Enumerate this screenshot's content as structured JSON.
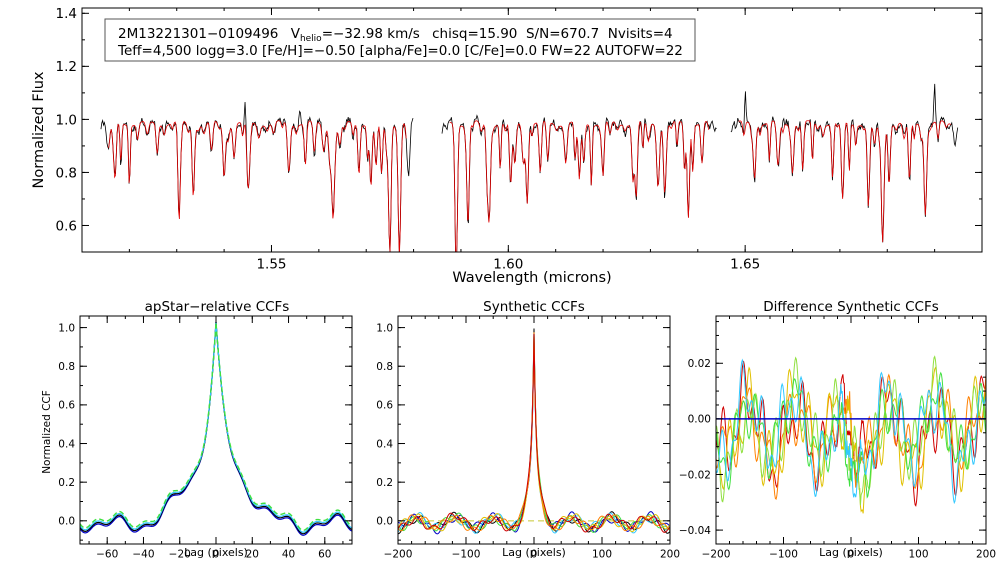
{
  "chart_data": [
    {
      "type": "line",
      "name": "spectrum",
      "title_lines": {
        "line1_id": "2M13221301−0109496",
        "line1_v_prefix": "V",
        "line1_v_sub": "helio",
        "line1_v_value": "=−32.98 km/s",
        "line1_rest": "chisq=15.90  S/N=670.7  Nvisits=4",
        "line2": "Teff=4,500 logg=3.0 [Fe/H]=−0.50 [alpha/Fe]=0.0 [C/Fe]=0.0 FW=22 AUTOFW=22"
      },
      "xlabel": "Wavelength (microns)",
      "ylabel": "Normalized Flux",
      "xlim": [
        1.51,
        1.7
      ],
      "ylim": [
        0.5,
        1.42
      ],
      "xticks": [
        1.55,
        1.6,
        1.65
      ],
      "xtick_labels": [
        "1.55",
        "1.60",
        "1.65"
      ],
      "yticks": [
        0.6,
        0.8,
        1.0,
        1.2,
        1.4
      ],
      "ytick_labels": [
        "0.6",
        "0.8",
        "1.0",
        "1.2",
        "1.4"
      ],
      "chips": [
        [
          1.514,
          1.58
        ],
        [
          1.586,
          1.644
        ],
        [
          1.647,
          1.695
        ]
      ],
      "series": [
        {
          "name": "observed",
          "color": "#000000"
        },
        {
          "name": "synthetic",
          "color": "#e00000"
        }
      ],
      "deep_absorption_lines": [
        {
          "x": 1.517,
          "depth": 0.8
        },
        {
          "x": 1.5305,
          "depth": 0.62
        },
        {
          "x": 1.5335,
          "depth": 0.73
        },
        {
          "x": 1.54,
          "depth": 0.8
        },
        {
          "x": 1.545,
          "depth": 0.79
        },
        {
          "x": 1.563,
          "depth": 0.69
        },
        {
          "x": 1.571,
          "depth": 0.76
        },
        {
          "x": 1.575,
          "depth": 0.53
        },
        {
          "x": 1.577,
          "depth": 0.51
        },
        {
          "x": 1.589,
          "depth": 0.51
        },
        {
          "x": 1.5915,
          "depth": 0.63
        },
        {
          "x": 1.596,
          "depth": 0.68
        },
        {
          "x": 1.6005,
          "depth": 0.76
        },
        {
          "x": 1.604,
          "depth": 0.71
        },
        {
          "x": 1.615,
          "depth": 0.78
        },
        {
          "x": 1.62,
          "depth": 0.8
        },
        {
          "x": 1.627,
          "depth": 0.72
        },
        {
          "x": 1.633,
          "depth": 0.78
        },
        {
          "x": 1.638,
          "depth": 0.65
        },
        {
          "x": 1.652,
          "depth": 0.8
        },
        {
          "x": 1.66,
          "depth": 0.82
        },
        {
          "x": 1.6705,
          "depth": 0.79
        },
        {
          "x": 1.676,
          "depth": 0.7
        },
        {
          "x": 1.679,
          "depth": 0.58
        },
        {
          "x": 1.688,
          "depth": 0.82
        }
      ],
      "emission_spikes": [
        {
          "x": 1.5445,
          "height": 1.06
        },
        {
          "x": 1.556,
          "height": 1.05
        },
        {
          "x": 1.65,
          "height": 1.12
        },
        {
          "x": 1.658,
          "height": 1.04
        },
        {
          "x": 1.69,
          "height": 1.13
        }
      ]
    },
    {
      "type": "line",
      "name": "apstar-ccf",
      "title": "apStar−relative CCFs",
      "xlabel": "Lag (pixels)",
      "ylabel": "Normalized CCF",
      "xlim": [
        -75,
        75
      ],
      "ylim": [
        -0.12,
        1.06
      ],
      "xticks": [
        -60,
        -40,
        -20,
        0,
        20,
        40,
        60
      ],
      "xtick_labels": [
        "−60",
        "−40",
        "−20",
        "0",
        "20",
        "40",
        "60"
      ],
      "yticks": [
        0.0,
        0.2,
        0.4,
        0.6,
        0.8,
        1.0
      ],
      "ytick_labels": [
        "0.0",
        "0.2",
        "0.4",
        "0.6",
        "0.8",
        "1.0"
      ],
      "series": [
        {
          "name": "visit-1",
          "color": "#0000c8",
          "offset": -0.012
        },
        {
          "name": "visit-2",
          "color": "#000000",
          "offset": -0.004
        },
        {
          "name": "visit-3",
          "color": "#30c8ff",
          "offset": 0.004
        },
        {
          "name": "visit-4",
          "color": "#40e040",
          "offset": 0.014,
          "dashed": true
        }
      ]
    },
    {
      "type": "line",
      "name": "synthetic-ccf",
      "title": "Synthetic CCFs",
      "xlabel": "Lag (pixels)",
      "ylabel": "",
      "xlim": [
        -200,
        200
      ],
      "ylim": [
        -0.12,
        1.06
      ],
      "xticks": [
        -200,
        -100,
        0,
        100,
        200
      ],
      "xtick_labels": [
        "−200",
        "−100",
        "0",
        "100",
        "200"
      ],
      "yticks": [
        0.0,
        0.2,
        0.4,
        0.6,
        0.8,
        1.0
      ],
      "ytick_labels": [
        "0.0",
        "0.2",
        "0.4",
        "0.6",
        "0.8",
        "1.0"
      ],
      "series": [
        {
          "name": "ccf-1",
          "color": "#000000"
        },
        {
          "name": "ccf-2",
          "color": "#0000c8"
        },
        {
          "name": "ccf-3",
          "color": "#30c8ff"
        },
        {
          "name": "ccf-4",
          "color": "#40e040"
        },
        {
          "name": "ccf-5",
          "color": "#e0c000"
        },
        {
          "name": "ccf-6",
          "color": "#ff8000"
        },
        {
          "name": "ccf-7",
          "color": "#d00000"
        }
      ],
      "reference_line": {
        "y": 0.0,
        "color": "#c8c832",
        "dashed": true
      }
    },
    {
      "type": "line",
      "name": "difference-ccf",
      "title": "Difference Synthetic CCFs",
      "xlabel": "Lag (pixels)",
      "ylabel": "",
      "xlim": [
        -200,
        200
      ],
      "ylim": [
        -0.045,
        0.037
      ],
      "xticks": [
        -200,
        -100,
        0,
        100,
        200
      ],
      "xtick_labels": [
        "−200",
        "−100",
        "0",
        "100",
        "200"
      ],
      "yticks": [
        -0.04,
        -0.02,
        0.0,
        0.02
      ],
      "ytick_labels": [
        "−0.04",
        "−0.02",
        "0.00",
        "0.02"
      ],
      "series": [
        {
          "name": "diff-1",
          "color": "#d00000"
        },
        {
          "name": "diff-2",
          "color": "#ff8000"
        },
        {
          "name": "diff-3",
          "color": "#e0c000"
        },
        {
          "name": "diff-4",
          "color": "#90e040"
        },
        {
          "name": "diff-5",
          "color": "#40e040"
        },
        {
          "name": "diff-6",
          "color": "#30c8ff"
        }
      ],
      "reference_line": {
        "y": 0.0,
        "color": "#0000c8",
        "dashed": false
      }
    }
  ]
}
